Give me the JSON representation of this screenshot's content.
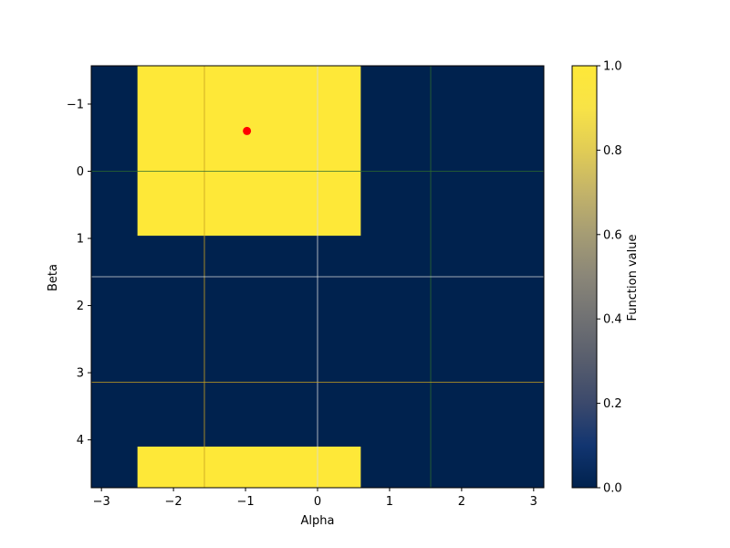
{
  "chart_data": {
    "type": "heatmap",
    "xlabel": "Alpha",
    "ylabel": "Beta",
    "colorbar_label": "Function value",
    "colormap": "cividis",
    "xlim": [
      -3.1416,
      3.1416
    ],
    "ylim_top": -1.5708,
    "ylim_bottom": 4.7124,
    "value_range": [
      0,
      1
    ],
    "background_value": 0,
    "high_value_regions": [
      {
        "x_range": [
          -2.5,
          0.6
        ],
        "y_range": [
          -1.5708,
          0.96
        ],
        "value": 1
      },
      {
        "x_range": [
          -2.5,
          0.6
        ],
        "y_range": [
          4.1,
          4.7124
        ],
        "value": 1
      }
    ],
    "marker": {
      "x": -0.98,
      "y": -0.6,
      "color": "#ff0000"
    },
    "reference_lines": [
      {
        "orientation": "vertical",
        "value": -1.5708,
        "color": "#c8a020"
      },
      {
        "orientation": "vertical",
        "value": 0,
        "color": "#d9d9d9"
      },
      {
        "orientation": "vertical",
        "value": 1.5708,
        "color": "#2e6b2e"
      },
      {
        "orientation": "horizontal",
        "value": 0,
        "color": "#2e6b2e"
      },
      {
        "orientation": "horizontal",
        "value": 1.5708,
        "color": "#d9d9d9"
      },
      {
        "orientation": "horizontal",
        "value": 3.1416,
        "color": "#c8a020"
      }
    ],
    "x_ticks": [
      -3,
      -2,
      -1,
      0,
      1,
      2,
      3
    ],
    "x_tick_labels": [
      "−3",
      "−2",
      "−1",
      "0",
      "1",
      "2",
      "3"
    ],
    "y_ticks": [
      -1,
      0,
      1,
      2,
      3,
      4
    ],
    "y_tick_labels": [
      "−1",
      "0",
      "1",
      "2",
      "3",
      "4"
    ],
    "colorbar_ticks": [
      0,
      0.2,
      0.4,
      0.6,
      0.8,
      1.0
    ],
    "colorbar_tick_labels": [
      "0.0",
      "0.2",
      "0.4",
      "0.6",
      "0.8",
      "1.0"
    ],
    "colors": {
      "low": "#00224e",
      "high": "#fee838"
    }
  }
}
